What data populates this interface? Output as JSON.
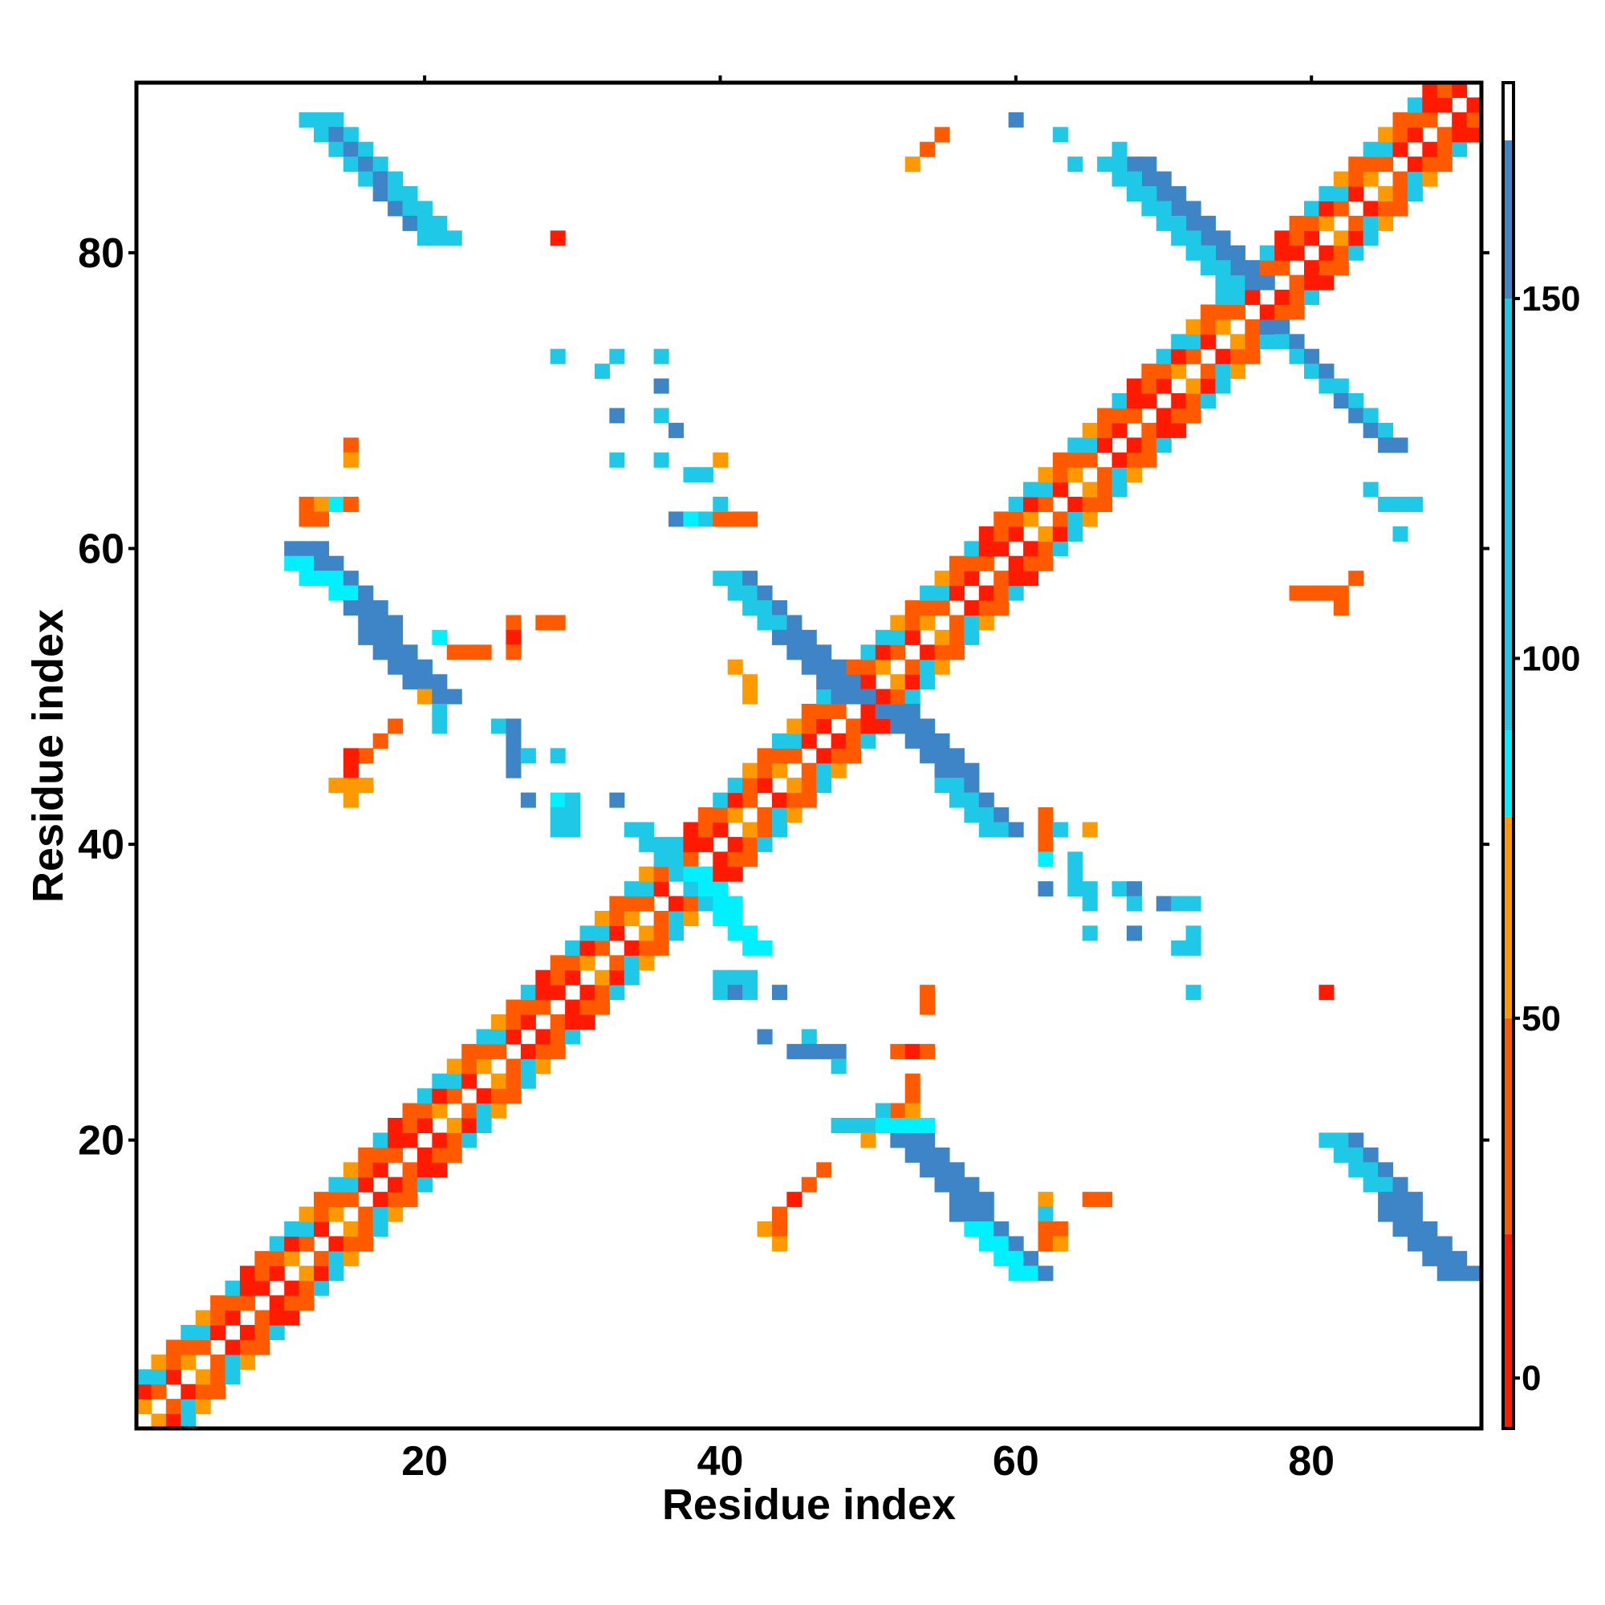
{
  "chart_data": {
    "type": "heatmap",
    "title": "",
    "xlabel": "Residue index",
    "ylabel": "Residue index",
    "xlim": [
      0.5,
      91.5
    ],
    "ylim": [
      0.5,
      91.5
    ],
    "x_ticks": [
      20,
      40,
      60,
      80
    ],
    "y_ticks": [
      20,
      40,
      60,
      80
    ],
    "colorbar": {
      "range": [
        -7,
        180
      ],
      "ticks": [
        0,
        50,
        100,
        150
      ],
      "segments": [
        {
          "from": -7,
          "to": 20,
          "color": "#ff1a00"
        },
        {
          "from": 20,
          "to": 50,
          "color": "#ff5a00"
        },
        {
          "from": 50,
          "to": 78,
          "color": "#ff9900"
        },
        {
          "from": 78,
          "to": 90,
          "color": "#00f0ff"
        },
        {
          "from": 90,
          "to": 150,
          "color": "#1ec8e6"
        },
        {
          "from": 150,
          "to": 172,
          "color": "#3d85c6"
        },
        {
          "from": 172,
          "to": 180,
          "color": "#ffffff"
        }
      ]
    },
    "value_colors": {
      "5": "#ff1a00",
      "35": "#ff5a00",
      "65": "#ff9900",
      "85": "#00f0ff",
      "120": "#1ec8e6",
      "160": "#3d85c6"
    },
    "diagonal_band": {
      "half_width": 3
    },
    "segments": [
      {
        "x": [
          12,
          20
        ],
        "y": [
          89,
          81
        ],
        "width": 3,
        "value": 120
      },
      {
        "x": [
          14,
          19
        ],
        "y": [
          88,
          82
        ],
        "width": 1,
        "value": 160
      },
      {
        "x": [
          11,
          20
        ],
        "y": [
          60,
          50
        ],
        "width": 3,
        "value": 160
      },
      {
        "x": [
          11,
          14
        ],
        "y": [
          59,
          57
        ],
        "width": 2,
        "value": 85
      },
      {
        "x": [
          40,
          48
        ],
        "y": [
          58,
          50
        ],
        "width": 3,
        "value": 160
      },
      {
        "x": [
          40,
          43
        ],
        "y": [
          58,
          55
        ],
        "width": 2,
        "value": 120
      },
      {
        "x": [
          51,
          58
        ],
        "y": [
          49,
          41
        ],
        "width": 3,
        "value": 160
      },
      {
        "x": [
          55,
          58
        ],
        "y": [
          44,
          41
        ],
        "width": 2,
        "value": 120
      },
      {
        "x": [
          52,
          60
        ],
        "y": [
          20,
          11
        ],
        "width": 3,
        "value": 160
      },
      {
        "x": [
          57,
          60
        ],
        "y": [
          14,
          11
        ],
        "width": 2,
        "value": 85
      },
      {
        "x": [
          81,
          89
        ],
        "y": [
          20,
          11
        ],
        "width": 3,
        "value": 160
      },
      {
        "x": [
          81,
          84
        ],
        "y": [
          20,
          17
        ],
        "width": 2,
        "value": 120
      },
      {
        "x": [
          68,
          76
        ],
        "y": [
          86,
          78
        ],
        "width": 2,
        "value": 160
      },
      {
        "x": [
          66,
          74
        ],
        "y": [
          86,
          78
        ],
        "width": 2,
        "value": 120
      },
      {
        "x": [
          77,
          85
        ],
        "y": [
          75,
          67
        ],
        "width": 2,
        "value": 160
      },
      {
        "x": [
          78,
          85
        ],
        "y": [
          74,
          68
        ],
        "width": 1,
        "value": 120
      },
      {
        "x": [
          34,
          40
        ],
        "y": [
          41,
          35
        ],
        "width": 2,
        "value": 120
      },
      {
        "x": [
          38,
          42
        ],
        "y": [
          38,
          33
        ],
        "width": 2,
        "value": 85
      },
      {
        "x": [
          41,
          42
        ],
        "y": [
          52,
          50
        ],
        "width": 1,
        "value": 65
      },
      {
        "x": [
          42,
          43
        ],
        "y": [
          44,
          41
        ],
        "width": 1,
        "value": 35
      }
    ],
    "points": [
      [
        29,
        81,
        5
      ],
      [
        54,
        87,
        35
      ],
      [
        55,
        88,
        35
      ],
      [
        53,
        86,
        65
      ],
      [
        60,
        89,
        160
      ],
      [
        63,
        88,
        120
      ],
      [
        64,
        86,
        120
      ],
      [
        67,
        87,
        120
      ],
      [
        29,
        73,
        120
      ],
      [
        32,
        72,
        120
      ],
      [
        33,
        73,
        120
      ],
      [
        36,
        73,
        120
      ],
      [
        36,
        71,
        160
      ],
      [
        33,
        69,
        160
      ],
      [
        36,
        69,
        120
      ],
      [
        37,
        68,
        160
      ],
      [
        33,
        66,
        120
      ],
      [
        36,
        66,
        120
      ],
      [
        38,
        65,
        120
      ],
      [
        39,
        65,
        120
      ],
      [
        40,
        66,
        65
      ],
      [
        39,
        62,
        120
      ],
      [
        37,
        62,
        160
      ],
      [
        40,
        62,
        35
      ],
      [
        41,
        62,
        35
      ],
      [
        42,
        62,
        35
      ],
      [
        38,
        62,
        85
      ],
      [
        40,
        63,
        120
      ],
      [
        15,
        67,
        35
      ],
      [
        15,
        66,
        65
      ],
      [
        12,
        63,
        35
      ],
      [
        13,
        63,
        65
      ],
      [
        14,
        63,
        85
      ],
      [
        15,
        63,
        35
      ],
      [
        12,
        62,
        35
      ],
      [
        13,
        62,
        35
      ],
      [
        21,
        54,
        85
      ],
      [
        22,
        53,
        35
      ],
      [
        23,
        53,
        35
      ],
      [
        24,
        53,
        35
      ],
      [
        26,
        55,
        35
      ],
      [
        26,
        54,
        5
      ],
      [
        26,
        53,
        35
      ],
      [
        28,
        55,
        35
      ],
      [
        29,
        55,
        35
      ],
      [
        20,
        50,
        65
      ],
      [
        21,
        49,
        120
      ],
      [
        21,
        48,
        120
      ],
      [
        18,
        48,
        35
      ],
      [
        17,
        47,
        35
      ],
      [
        16,
        46,
        35
      ],
      [
        15,
        46,
        5
      ],
      [
        15,
        45,
        5
      ],
      [
        14,
        44,
        65
      ],
      [
        15,
        44,
        65
      ],
      [
        16,
        44,
        65
      ],
      [
        15,
        43,
        65
      ],
      [
        25,
        48,
        120
      ],
      [
        26,
        48,
        160
      ],
      [
        26,
        47,
        160
      ],
      [
        26,
        46,
        160
      ],
      [
        26,
        45,
        160
      ],
      [
        27,
        46,
        120
      ],
      [
        29,
        46,
        120
      ],
      [
        27,
        43,
        160
      ],
      [
        29,
        43,
        85
      ],
      [
        30,
        43,
        120
      ],
      [
        29,
        42,
        120
      ],
      [
        30,
        42,
        120
      ],
      [
        29,
        41,
        120
      ],
      [
        30,
        41,
        120
      ],
      [
        33,
        43,
        160
      ],
      [
        62,
        42,
        35
      ],
      [
        62,
        41,
        35
      ],
      [
        62,
        40,
        35
      ],
      [
        63,
        41,
        120
      ],
      [
        62,
        39,
        85
      ],
      [
        65,
        41,
        65
      ],
      [
        64,
        39,
        120
      ],
      [
        64,
        38,
        120
      ],
      [
        62,
        37,
        160
      ],
      [
        64,
        37,
        120
      ],
      [
        65,
        37,
        120
      ],
      [
        65,
        36,
        120
      ],
      [
        67,
        37,
        120
      ],
      [
        68,
        37,
        160
      ],
      [
        68,
        36,
        120
      ],
      [
        70,
        36,
        160
      ],
      [
        71,
        36,
        120
      ],
      [
        72,
        36,
        120
      ],
      [
        72,
        34,
        120
      ],
      [
        72,
        33,
        120
      ],
      [
        71,
        33,
        120
      ],
      [
        65,
        34,
        120
      ],
      [
        68,
        34,
        160
      ],
      [
        72,
        30,
        120
      ],
      [
        81,
        30,
        5
      ],
      [
        40,
        31,
        120
      ],
      [
        41,
        31,
        120
      ],
      [
        42,
        31,
        120
      ],
      [
        40,
        30,
        120
      ],
      [
        41,
        30,
        160
      ],
      [
        42,
        30,
        120
      ],
      [
        44,
        30,
        160
      ],
      [
        54,
        30,
        35
      ],
      [
        54,
        29,
        35
      ],
      [
        43,
        27,
        160
      ],
      [
        46,
        27,
        120
      ],
      [
        45,
        26,
        160
      ],
      [
        46,
        26,
        160
      ],
      [
        47,
        26,
        160
      ],
      [
        48,
        26,
        160
      ],
      [
        48,
        25,
        120
      ],
      [
        52,
        26,
        35
      ],
      [
        53,
        26,
        5
      ],
      [
        54,
        26,
        35
      ],
      [
        53,
        24,
        35
      ],
      [
        53,
        23,
        35
      ],
      [
        52,
        22,
        35
      ],
      [
        53,
        22,
        65
      ],
      [
        48,
        21,
        120
      ],
      [
        49,
        21,
        120
      ],
      [
        50,
        21,
        120
      ],
      [
        51,
        22,
        120
      ],
      [
        51,
        21,
        85
      ],
      [
        52,
        21,
        85
      ],
      [
        53,
        21,
        85
      ],
      [
        54,
        21,
        85
      ],
      [
        50,
        20,
        65
      ],
      [
        47,
        18,
        35
      ],
      [
        46,
        17,
        35
      ],
      [
        45,
        16,
        5
      ],
      [
        44,
        15,
        35
      ],
      [
        43,
        14,
        65
      ],
      [
        44,
        14,
        35
      ],
      [
        44,
        13,
        65
      ],
      [
        62,
        16,
        65
      ],
      [
        62,
        15,
        120
      ],
      [
        62,
        14,
        35
      ],
      [
        63,
        14,
        35
      ],
      [
        62,
        13,
        35
      ],
      [
        63,
        13,
        65
      ],
      [
        65,
        16,
        35
      ],
      [
        66,
        16,
        35
      ],
      [
        79,
        57,
        35
      ],
      [
        80,
        57,
        35
      ],
      [
        81,
        57,
        35
      ],
      [
        82,
        57,
        35
      ],
      [
        82,
        56,
        35
      ],
      [
        83,
        58,
        35
      ],
      [
        84,
        64,
        120
      ],
      [
        85,
        63,
        120
      ],
      [
        86,
        63,
        120
      ],
      [
        87,
        63,
        120
      ],
      [
        86,
        61,
        120
      ]
    ]
  }
}
